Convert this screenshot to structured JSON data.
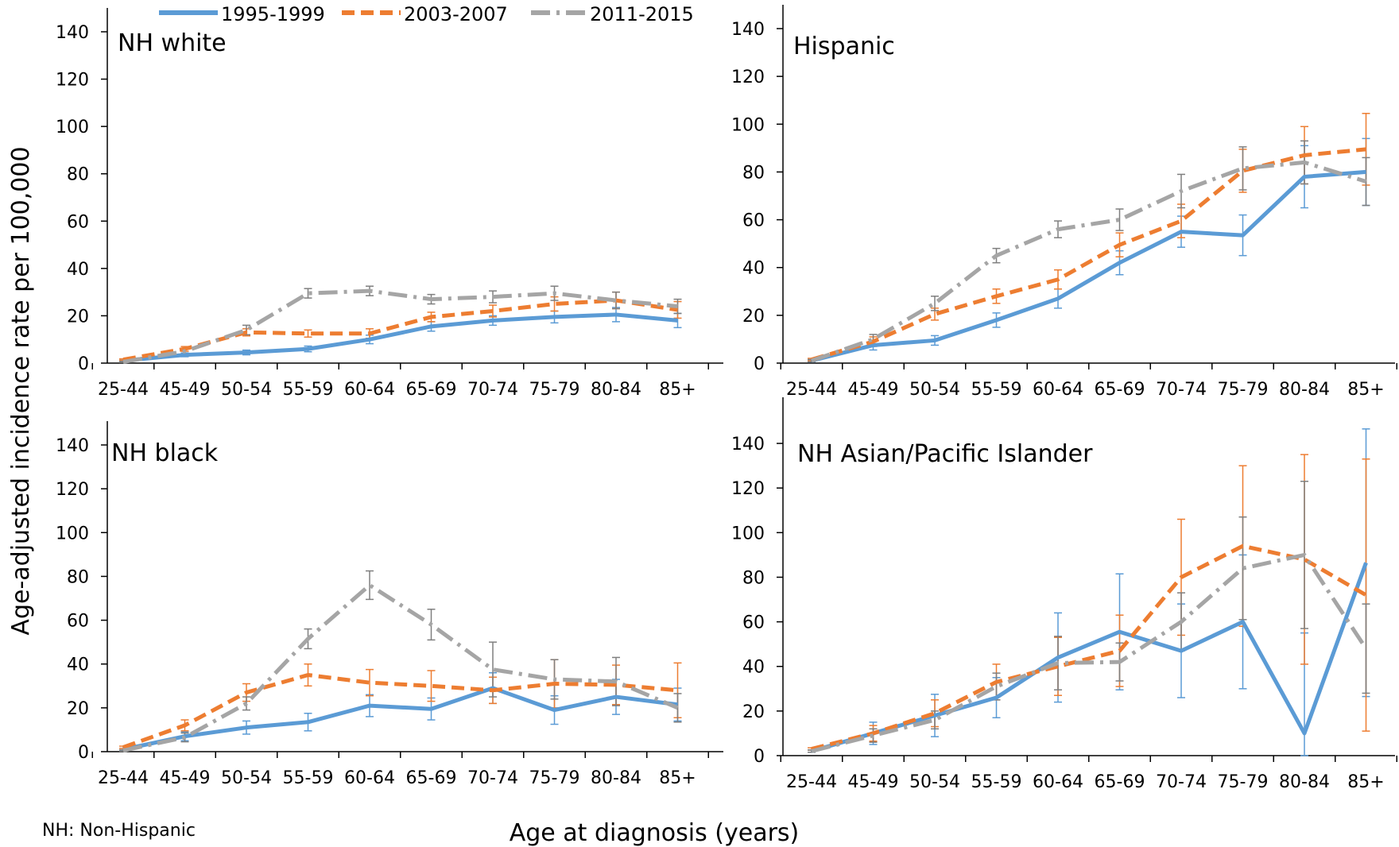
{
  "legend": [
    {
      "label": "1995-1999",
      "color": "#5b9bd5",
      "style": "solid"
    },
    {
      "label": "2003-2007",
      "color": "#ed7d31",
      "style": "dashed"
    },
    {
      "label": "2011-2015",
      "color": "#a5a5a5",
      "style": "dash-dot"
    }
  ],
  "y_axis_label": "Age-adjusted incidence rate per 100,000",
  "x_axis_label": "Age at diagnosis (years)",
  "footnote": "NH: Non-Hispanic",
  "chart_data": [
    {
      "type": "line",
      "title": "NH white",
      "categories": [
        "25-44",
        "45-49",
        "50-54",
        "55-59",
        "60-64",
        "65-69",
        "70-74",
        "75-79",
        "80-84",
        "85+"
      ],
      "ylim": [
        0,
        140
      ],
      "yticks": [
        0,
        20,
        40,
        60,
        80,
        100,
        120,
        140
      ],
      "series": [
        {
          "name": "1995-1999",
          "values": [
            1,
            3.5,
            4.5,
            6,
            10,
            15.5,
            18,
            19.5,
            20.5,
            18
          ],
          "err": [
            0.3,
            0.8,
            1,
            1.2,
            1.8,
            2,
            2,
            2.5,
            3,
            3
          ]
        },
        {
          "name": "2003-2007",
          "values": [
            1.5,
            6,
            13,
            12.5,
            12.5,
            19.5,
            22,
            25,
            26.5,
            22.5
          ],
          "err": [
            0.3,
            1,
            1.5,
            1.5,
            2,
            2,
            2.5,
            3,
            3.5,
            3.5
          ]
        },
        {
          "name": "2011-2015",
          "values": [
            0.5,
            5,
            14,
            29.5,
            30.5,
            27,
            28,
            29.5,
            26.5,
            24
          ],
          "err": [
            0.2,
            1,
            2,
            2,
            2,
            2,
            2.5,
            3,
            3.5,
            3
          ]
        }
      ]
    },
    {
      "type": "line",
      "title": "Hispanic",
      "categories": [
        "25-44",
        "45-49",
        "50-54",
        "55-59",
        "60-64",
        "65-69",
        "70-74",
        "75-79",
        "80-84",
        "85+"
      ],
      "ylim": [
        0,
        140
      ],
      "yticks": [
        0,
        20,
        40,
        60,
        80,
        100,
        120,
        140
      ],
      "series": [
        {
          "name": "1995-1999",
          "values": [
            1,
            7.5,
            9.5,
            18,
            27,
            42,
            55,
            53.5,
            78,
            80
          ],
          "err": [
            0.5,
            2,
            2,
            3,
            4,
            5,
            6.5,
            8.5,
            13,
            14
          ]
        },
        {
          "name": "2003-2007",
          "values": [
            1.5,
            9,
            20.5,
            28,
            35,
            49.5,
            59.5,
            80.5,
            87,
            89.5
          ],
          "err": [
            0.5,
            2,
            2.5,
            3,
            4,
            5,
            7,
            9,
            12,
            15
          ]
        },
        {
          "name": "2011-2015",
          "values": [
            1,
            10,
            25,
            45,
            56,
            60,
            72,
            81.5,
            84,
            76
          ],
          "err": [
            0.5,
            2,
            3,
            3,
            3.5,
            4.5,
            7,
            9,
            9,
            10
          ]
        }
      ]
    },
    {
      "type": "line",
      "title": "NH black",
      "categories": [
        "25-44",
        "45-49",
        "50-54",
        "55-59",
        "60-64",
        "65-69",
        "70-74",
        "75-79",
        "80-84",
        "85+"
      ],
      "ylim": [
        0,
        140
      ],
      "yticks": [
        0,
        20,
        40,
        60,
        80,
        100,
        120,
        140
      ],
      "series": [
        {
          "name": "1995-1999",
          "values": [
            1,
            7,
            11,
            13.5,
            21,
            19.5,
            29,
            19,
            25,
            21.5
          ],
          "err": [
            0.5,
            2,
            3,
            4,
            5,
            5,
            7,
            6.5,
            8,
            7.5
          ]
        },
        {
          "name": "2003-2007",
          "values": [
            2,
            12,
            27,
            35,
            31.5,
            30,
            28,
            31,
            30.5,
            28
          ],
          "err": [
            0.5,
            2.5,
            4,
            5,
            6,
            7,
            6,
            11,
            9,
            12.5
          ]
        },
        {
          "name": "2011-2015",
          "values": [
            0.5,
            6.5,
            22,
            51.5,
            76,
            58,
            37.5,
            33,
            32,
            20
          ],
          "err": [
            0.3,
            2,
            3,
            4.5,
            6.5,
            7,
            12.5,
            9,
            11,
            6.5
          ]
        }
      ]
    },
    {
      "type": "line",
      "title": "NH Asian/Pacific Islander",
      "categories": [
        "25-44",
        "45-49",
        "50-54",
        "55-59",
        "60-64",
        "65-69",
        "70-74",
        "75-79",
        "80-84",
        "85+"
      ],
      "ylim": [
        0,
        150
      ],
      "yticks": [
        0,
        20,
        40,
        60,
        80,
        100,
        120,
        140
      ],
      "series": [
        {
          "name": "1995-1999",
          "values": [
            2,
            10,
            18,
            26,
            44,
            55.5,
            47,
            60,
            10,
            86.5
          ],
          "err": [
            0.5,
            5,
            9.5,
            9,
            20,
            26,
            21,
            30,
            45,
            60
          ]
        },
        {
          "name": "2003-2007",
          "values": [
            3,
            10,
            19,
            33,
            40,
            47,
            80,
            94,
            88,
            72
          ],
          "err": [
            0.5,
            3.5,
            6,
            8,
            13,
            16,
            26,
            36,
            47,
            61
          ]
        },
        {
          "name": "2011-2015",
          "values": [
            2,
            9,
            16,
            31,
            41.5,
            42,
            60,
            84,
            90,
            48
          ],
          "err": [
            0.5,
            3,
            4,
            6,
            12,
            8.5,
            13,
            23,
            33,
            20
          ]
        }
      ]
    }
  ]
}
